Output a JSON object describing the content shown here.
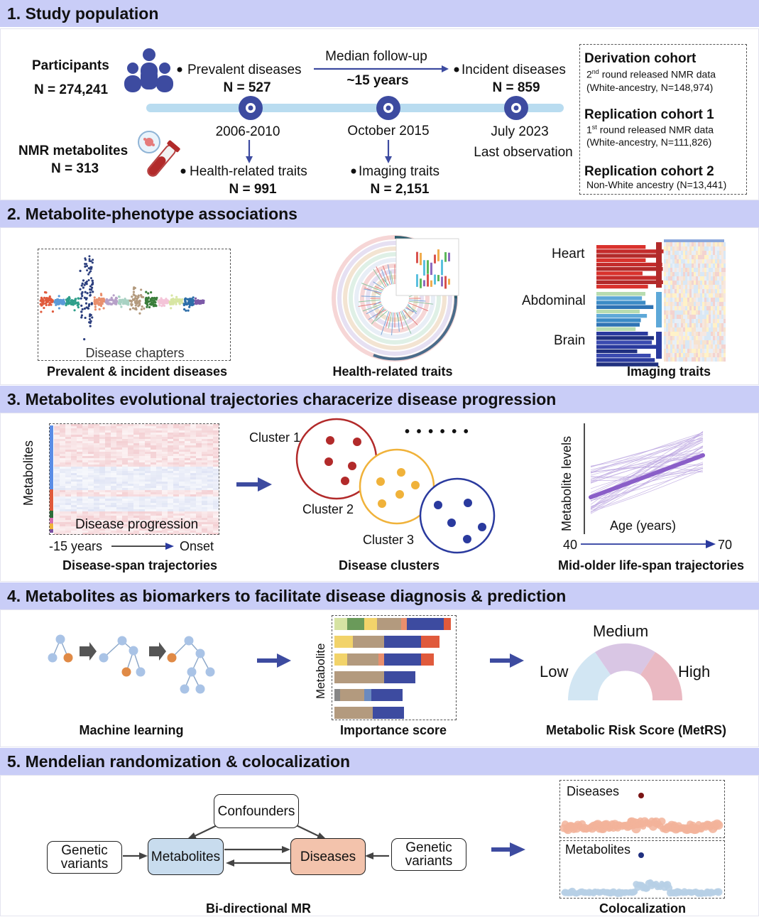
{
  "colors": {
    "header_bg": "#c9cdf7",
    "navy": "#3d4ba0",
    "timeline": "#b9dcf0",
    "red": "#b22a2a",
    "yellow": "#f0b23a",
    "blue": "#2a3a9e",
    "purple": "#8a5ec8"
  },
  "s1": {
    "title": "1. Study population",
    "participants_label": "Participants",
    "participants_n": "N = 274,241",
    "nmr_label": "NMR metabolites",
    "nmr_n": "N = 313",
    "prevalent_label": "Prevalent diseases",
    "prevalent_n": "N = 527",
    "followup_label": "Median follow-up",
    "followup_value": "~15 years",
    "incident_label": "Incident diseases",
    "incident_n": "N = 859",
    "date1": "2006-2010",
    "date2": "October 2015",
    "date3": "July 2023",
    "date3_sub": "Last observation",
    "health_label": "Health-related traits",
    "health_n": "N = 991",
    "imaging_label": "Imaging traits",
    "imaging_n": "N = 2,151",
    "cohorts": [
      {
        "title": "Derivation cohort",
        "sup": "nd",
        "line1_num": "2",
        "line1_rest": " round released NMR data",
        "line2": "(White-ancestry, N=148,974)"
      },
      {
        "title": "Replication cohort 1",
        "sup": "st",
        "line1_num": "1",
        "line1_rest": " round released NMR data",
        "line2": "(White-ancestry, N=111,826)"
      },
      {
        "title": "Replication cohort 2",
        "line1": "Non-White ancestry (N=13,441)"
      }
    ]
  },
  "s2": {
    "title": "2. Metabolite-phenotype associations",
    "chapters_label": "Disease chapters",
    "cap1": "Prevalent & incident diseases",
    "cap2": "Health-related traits",
    "cap3": "Imaging traits",
    "organs": [
      "Heart",
      "Abdominal",
      "Brain"
    ]
  },
  "s3": {
    "title": "3. Metabolites evolutional trajectories characerize disease progression",
    "y_label": "Metabolites",
    "progress_label": "Disease progression",
    "x_start": "-15 years",
    "x_end": "Onset",
    "cap1": "Disease-span trajectories",
    "clusters": [
      "Cluster 1",
      "Cluster 2",
      "Cluster 3"
    ],
    "ellipsis": "• • • • • •",
    "cap2": "Disease clusters",
    "traj_y": "Metabolite levels",
    "traj_x": "Age (years)",
    "age_start": "40",
    "age_end": "70",
    "cap3": "Mid-older life-span trajectories"
  },
  "s4": {
    "title": "4. Metabolites as biomarkers to facilitate disease diagnosis & prediction",
    "cap1": "Machine learning",
    "imp_y": "Metabolite",
    "cap2": "Importance score",
    "risk_low": "Low",
    "risk_med": "Medium",
    "risk_high": "High",
    "cap3": "Metabolic Risk Score (MetRS)"
  },
  "s5": {
    "title": "5. Mendelian randomization & colocalization",
    "confounders": "Confounders",
    "gv1": "Genetic variants",
    "metabolites": "Metabolites",
    "diseases": "Diseases",
    "gv2": "Genetic variants",
    "cap1": "Bi-directional MR",
    "coloc_top": "Diseases",
    "coloc_bottom": "Metabolites",
    "cap2": "Colocalization"
  }
}
